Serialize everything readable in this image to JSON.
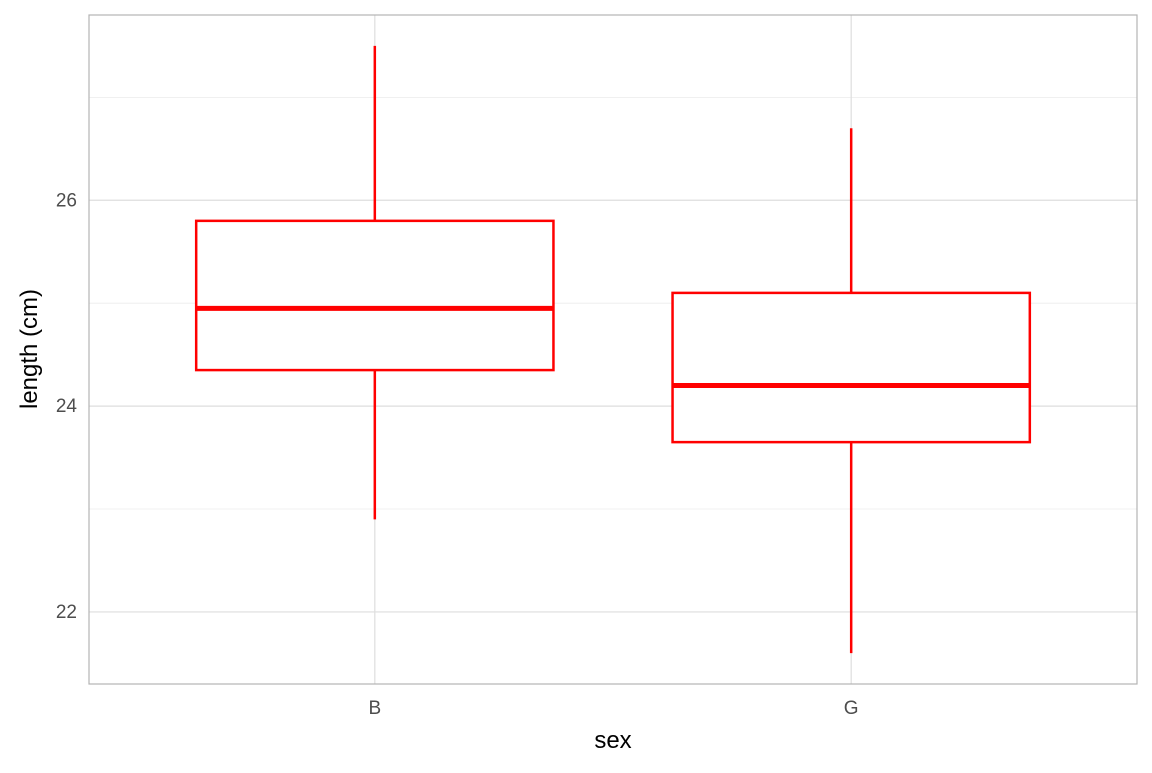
{
  "chart_data": {
    "type": "boxplot",
    "xlabel": "sex",
    "ylabel": "length (cm)",
    "categories": [
      "B",
      "G"
    ],
    "ylim": [
      21.3,
      27.8
    ],
    "yticks": [
      22,
      24,
      26
    ],
    "ytick_labels": [
      "22",
      "24",
      "26"
    ],
    "grid": true,
    "color": "#ff0000",
    "boxes": [
      {
        "category": "B",
        "whisker_low": 22.9,
        "q1": 24.35,
        "median": 24.95,
        "q3": 25.8,
        "whisker_high": 27.5
      },
      {
        "category": "G",
        "whisker_low": 21.6,
        "q1": 23.65,
        "median": 24.2,
        "q3": 25.1,
        "whisker_high": 26.7
      }
    ]
  }
}
